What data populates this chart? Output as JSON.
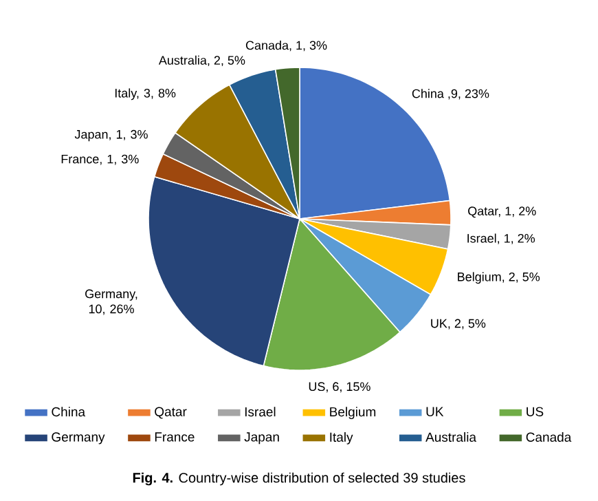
{
  "chart_data": {
    "type": "pie",
    "title": "**Fig. 4.** Country-wise distribution of selected 39 studies",
    "categories": [
      "China",
      "Qatar",
      "Israel",
      "Belgium",
      "UK",
      "US",
      "Germany",
      "France",
      "Japan",
      "Italy",
      "Australia",
      "Canada"
    ],
    "values": [
      9,
      1,
      1,
      2,
      2,
      6,
      10,
      1,
      1,
      3,
      2,
      1
    ],
    "value_labels": [
      "China ,9, 23%",
      "Qatar, 1, 2%",
      "Israel, 1, 2%",
      "Belgium, 2, 5%",
      "UK, 2, 5%",
      "US, 6, 15%",
      "Germany, 10, 26%",
      "France, 1, 3%",
      "Japan, 1, 3%",
      "Italy, 3, 8%",
      "Australia, 2, 5%",
      "Canada, 1, 3%"
    ],
    "colors": [
      "#4472c4",
      "#ed7d31",
      "#a5a5a5",
      "#ffc000",
      "#5b9bd5",
      "#70ad47",
      "#264478",
      "#9e480e",
      "#636363",
      "#997300",
      "#255e91",
      "#43682b"
    ],
    "legend": "bottom"
  }
}
